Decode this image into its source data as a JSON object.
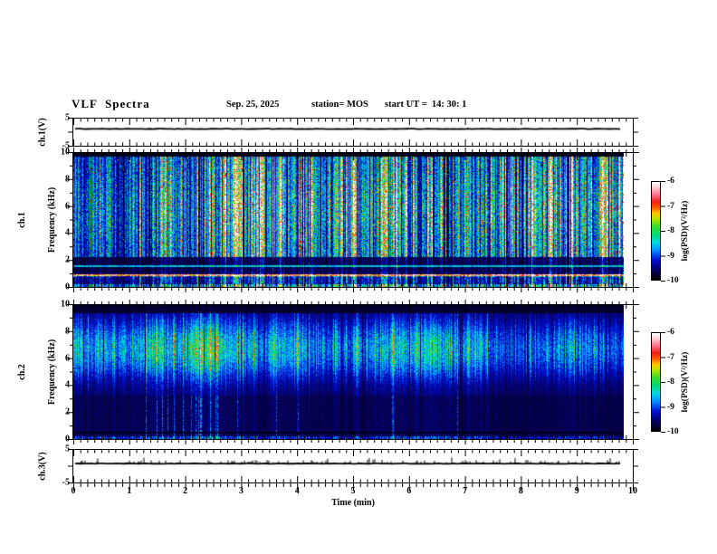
{
  "header": {
    "title": "VLF  Spectra",
    "date": "Sep. 25, 2025",
    "station_label": "station= MOS",
    "start_ut_label": "start UT =  14: 30: 1"
  },
  "time_axis": {
    "label": "Time (min)",
    "range": [
      0,
      10
    ],
    "major_ticks": [
      0,
      1,
      2,
      3,
      4,
      5,
      6,
      7,
      8,
      9,
      10
    ],
    "minor_divisions": 8,
    "data_end_min": 9.8
  },
  "colormap_stops": [
    [
      0.0,
      "#000006"
    ],
    [
      0.09,
      "#06005a"
    ],
    [
      0.2,
      "#0010d8"
    ],
    [
      0.3,
      "#0090ff"
    ],
    [
      0.38,
      "#00d8e8"
    ],
    [
      0.46,
      "#00dc78"
    ],
    [
      0.55,
      "#3cdc28"
    ],
    [
      0.62,
      "#b4e400"
    ],
    [
      0.68,
      "#ffc800"
    ],
    [
      0.735,
      "#ff6400"
    ],
    [
      0.8,
      "#f01e14"
    ],
    [
      0.87,
      "#ff6e8c"
    ],
    [
      0.94,
      "#ffc3cd"
    ],
    [
      1.0,
      "#ffffff"
    ]
  ],
  "chart_data": [
    {
      "type": "line",
      "id": "ch1-waveform",
      "ylabel": "ch.1(V)",
      "ylim": [
        -5,
        5
      ],
      "ytick_values": [
        5,
        0,
        -5
      ],
      "ytick_labels": [
        "5",
        "",
        "-5"
      ],
      "x_range_min": [
        0,
        9.8
      ],
      "trace_level_v": 1.2,
      "description": "flat DC offset trace, no visible modulation"
    },
    {
      "type": "heatmap",
      "id": "ch1-spectrogram",
      "ylabel_line1": "ch.1",
      "ylabel_line2": "Frequency (kHz)",
      "ylim_khz": [
        0,
        10
      ],
      "ytick_major": [
        0,
        2,
        4,
        6,
        8,
        10
      ],
      "ytick_minor": [
        1,
        3,
        5,
        7,
        9
      ],
      "x_range_min": [
        0,
        9.8
      ],
      "value_scale": {
        "label": "log(PSD)(V²/Hz)",
        "min": -10,
        "max": -6,
        "ticks": [
          -6,
          -7,
          -8,
          -9,
          -10
        ]
      },
      "features": {
        "background_log_psd": -9.8,
        "texture": "dense impulsive broadband vertical streaks (sferics) spanning 0-10 kHz, mostly blue-cyan with sparse green/red columns",
        "bright_line_khz": 0.9,
        "faint_line_khz": 1.6,
        "quiet_band_khz": [
          1.1,
          2.25
        ],
        "top_cutoff_khz": 9.78,
        "hot_streak_log_psd": -6.5
      }
    },
    {
      "type": "heatmap",
      "id": "ch2-spectrogram",
      "ylabel_line1": "ch.2",
      "ylabel_line2": "Frequency (kHz)",
      "ylim_khz": [
        0,
        10
      ],
      "ytick_major": [
        0,
        2,
        4,
        6,
        8,
        10
      ],
      "ytick_minor": [
        1,
        3,
        5,
        7,
        9
      ],
      "x_range_min": [
        0,
        9.8
      ],
      "value_scale": {
        "label": "log(PSD)(V²/Hz)",
        "min": -10,
        "max": -6,
        "ticks": [
          -6,
          -7,
          -8,
          -9,
          -10
        ]
      },
      "features": {
        "background_log_psd": -9.7,
        "texture": "continuous banded emission with mottled green/yellow core and red hotspots plus impulsive vertical streaks",
        "emission_band_khz": [
          4.5,
          8.8
        ],
        "band_peak_khz": 6.75,
        "band_peak_log_psd": -6.6,
        "dark_line_khz": 0.5,
        "bottom_speckle_khz": 0.2,
        "top_cutoff_khz": 9.45
      }
    },
    {
      "type": "line",
      "id": "ch3-waveform",
      "ylabel": "ch.3(V)",
      "ylim": [
        -5,
        5
      ],
      "ytick_values": [
        5,
        0,
        -5
      ],
      "ytick_labels": [
        "5",
        "",
        "-5"
      ],
      "x_range_min": [
        0,
        9.8
      ],
      "trace_level_v": 0.8,
      "description": "flat trace with small positive impulsive spikes"
    }
  ],
  "colorbars": [
    {
      "label": "log(PSD)(V²/Hz)",
      "tick_labels": [
        "-6",
        "-7",
        "-8",
        "-9",
        "-10"
      ]
    },
    {
      "label": "log(PSD)(V²/Hz)",
      "tick_labels": [
        "-6",
        "-7",
        "-8",
        "-9",
        "-10"
      ]
    }
  ]
}
